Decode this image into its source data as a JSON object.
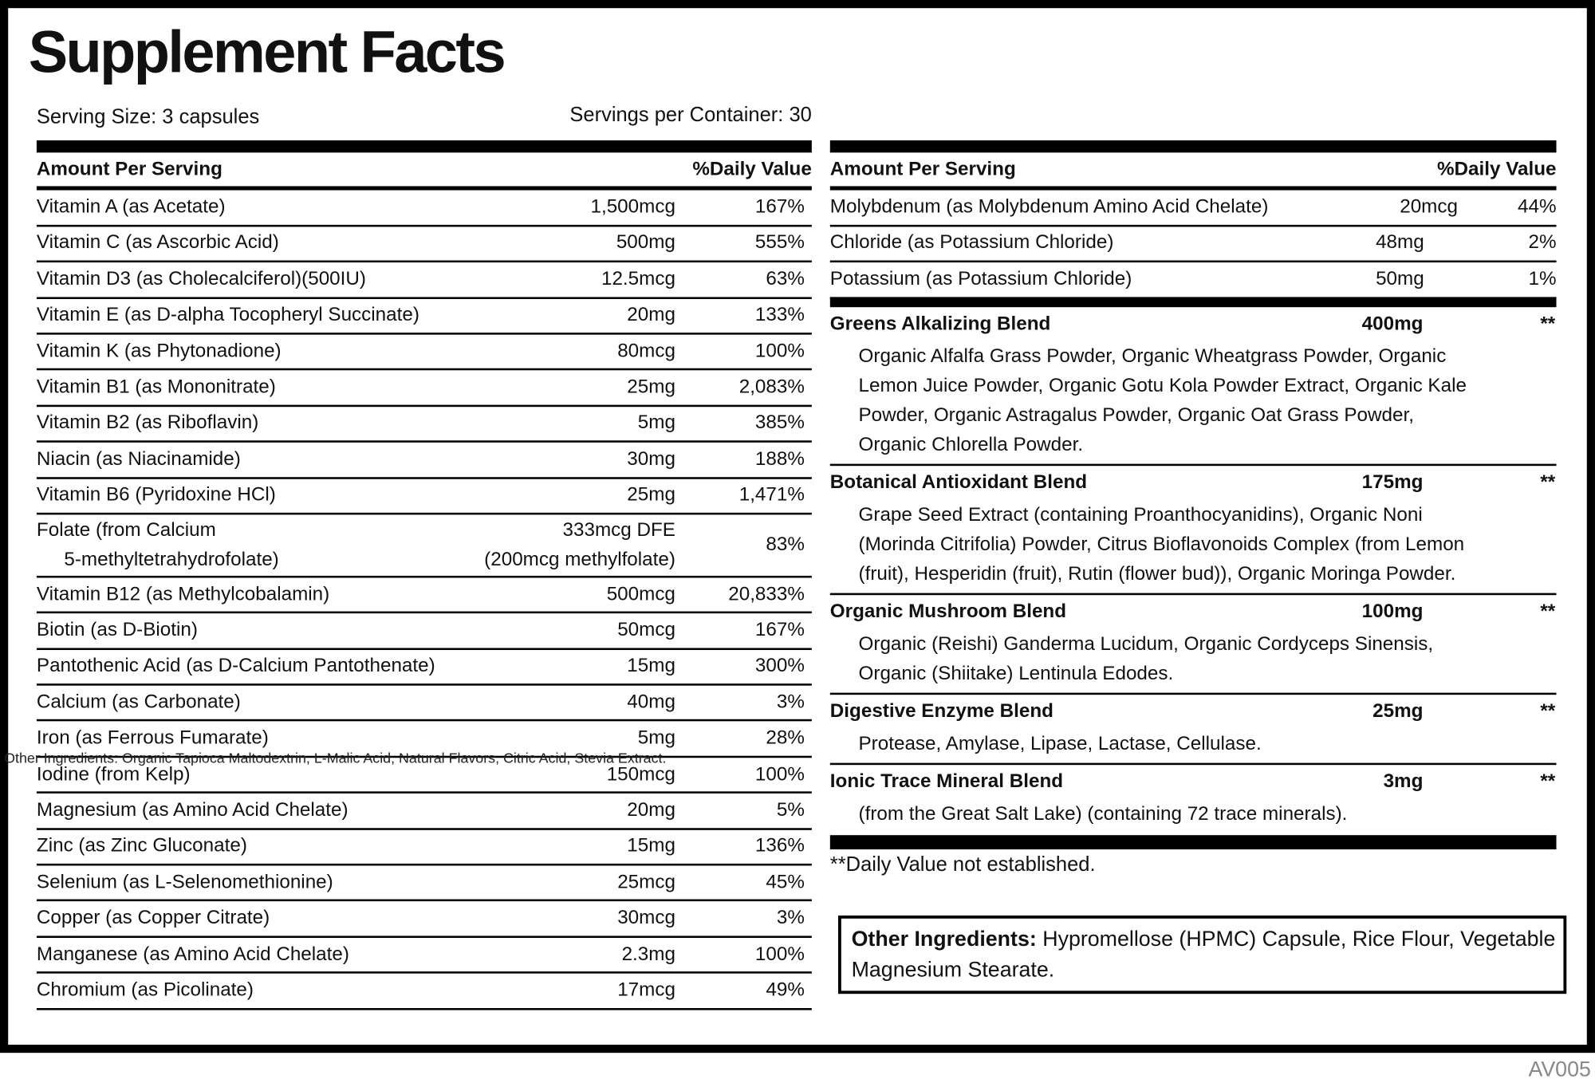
{
  "header": {
    "title": "Supplement Facts",
    "serving_size": "Serving Size: 3 capsules",
    "servings_per_container": "Servings per Container: 30"
  },
  "left_table": {
    "header": {
      "amount": "Amount Per Serving",
      "dv": "%Daily Value"
    },
    "rows": [
      {
        "name": "Vitamin A (as Acetate)",
        "amount": "1,500mcg",
        "dv": "167%"
      },
      {
        "name": "Vitamin C (as Ascorbic Acid)",
        "amount": "500mg",
        "dv": "555%"
      },
      {
        "name": "Vitamin D3 (as Cholecalciferol)(500IU)",
        "amount": "12.5mcg",
        "dv": "63%"
      },
      {
        "name": "Vitamin E (as D-alpha Tocopheryl Succinate)",
        "amount": "20mg",
        "dv": "133%"
      },
      {
        "name": "Vitamin K (as Phytonadione)",
        "amount": "80mcg",
        "dv": "100%"
      },
      {
        "name": "Vitamin B1 (as Mononitrate)",
        "amount": "25mg",
        "dv": "2,083%"
      },
      {
        "name": "Vitamin B2 (as Riboflavin)",
        "amount": "5mg",
        "dv": "385%"
      },
      {
        "name": "Niacin (as Niacinamide)",
        "amount": "30mg",
        "dv": "188%"
      },
      {
        "name": "Vitamin B6 (Pyridoxine HCl)",
        "amount": "25mg",
        "dv": "1,471%"
      },
      {
        "name": [
          "Folate (from Calcium",
          "5-methyltetrahydrofolate)"
        ],
        "amount": [
          "333mcg DFE",
          "(200mcg methylfolate)"
        ],
        "dv": "83%"
      },
      {
        "name": "Vitamin B12 (as Methylcobalamin)",
        "amount": "500mcg",
        "dv": "20,833%"
      },
      {
        "name": "Biotin (as D-Biotin)",
        "amount": "50mcg",
        "dv": "167%"
      },
      {
        "name": "Pantothenic Acid (as D-Calcium Pantothenate)",
        "amount": "15mg",
        "dv": "300%"
      },
      {
        "name": "Calcium (as Carbonate)",
        "amount": "40mg",
        "dv": "3%"
      },
      {
        "name": "Iron (as Ferrous Fumarate)",
        "amount": "5mg",
        "dv": "28%"
      },
      {
        "name": "Iodine (from Kelp)",
        "amount": "150mcg",
        "dv": "100%"
      },
      {
        "name": "Magnesium (as Amino Acid Chelate)",
        "amount": "20mg",
        "dv": "5%"
      },
      {
        "name": "Zinc (as Zinc Gluconate)",
        "amount": "15mg",
        "dv": "136%"
      },
      {
        "name": "Selenium (as L-Selenomethionine)",
        "amount": "25mcg",
        "dv": "45%"
      },
      {
        "name": "Copper (as Copper Citrate)",
        "amount": "30mcg",
        "dv": "3%"
      },
      {
        "name": "Manganese (as Amino Acid Chelate)",
        "amount": "2.3mg",
        "dv": "100%"
      },
      {
        "name": "Chromium (as Picolinate)",
        "amount": "17mcg",
        "dv": "49%"
      }
    ]
  },
  "right_table": {
    "header": {
      "amount": "Amount Per Serving",
      "dv": "%Daily Value"
    },
    "rows": [
      {
        "name": "Molybdenum (as Molybdenum Amino Acid Chelate)",
        "amount": "20mcg",
        "dv": "44%"
      },
      {
        "name": "Chloride (as Potassium Chloride)",
        "amount": "48mg",
        "dv": "2%"
      },
      {
        "name": "Potassium (as Potassium Chloride)",
        "amount": "50mg",
        "dv": "1%"
      }
    ],
    "blends": [
      {
        "name": "Greens Alkalizing Blend",
        "amount": "400mg",
        "dv": "**",
        "description": "Organic Alfalfa Grass Powder, Organic Wheatgrass Powder, Organic Lemon Juice Powder, Organic Gotu Kola Powder Extract, Organic Kale Powder, Organic Astragalus Powder, Organic Oat Grass Powder, Organic Chlorella Powder."
      },
      {
        "name": "Botanical Antioxidant Blend",
        "amount": "175mg",
        "dv": "**",
        "description": "Grape Seed Extract (containing Proanthocyanidins), Organic Noni (Morinda Citrifolia) Powder, Citrus Bioflavonoids Complex (from Lemon (fruit), Hesperidin (fruit), Rutin (flower bud)), Organic Moringa Powder."
      },
      {
        "name": "Organic Mushroom Blend",
        "amount": "100mg",
        "dv": "**",
        "description": "Organic (Reishi) Ganderma Lucidum, Organic Cordyceps Sinensis, Organic (Shiitake) Lentinula Edodes."
      },
      {
        "name": "Digestive Enzyme Blend",
        "amount": "25mg",
        "dv": "**",
        "description": "Protease, Amylase, Lipase, Lactase, Cellulase."
      },
      {
        "name": "Ionic Trace Mineral Blend",
        "amount": "3mg",
        "dv": "**",
        "description": "(from the Great Salt Lake) (containing 72 trace minerals)."
      }
    ]
  },
  "footnote": "**Daily Value not established.",
  "other_ingredients": {
    "label": "Other Ingredients:",
    "text": "Hypromellose (HPMC) Capsule, Rice Flour, Vegetable Magnesium Stearate."
  },
  "overlay_text": "Other Ingredients: Organic Tapioca Maltodextrin, L-Malic Acid, Natural Flavors, Citric Acid, Stevia Extract.",
  "code": "AV005"
}
